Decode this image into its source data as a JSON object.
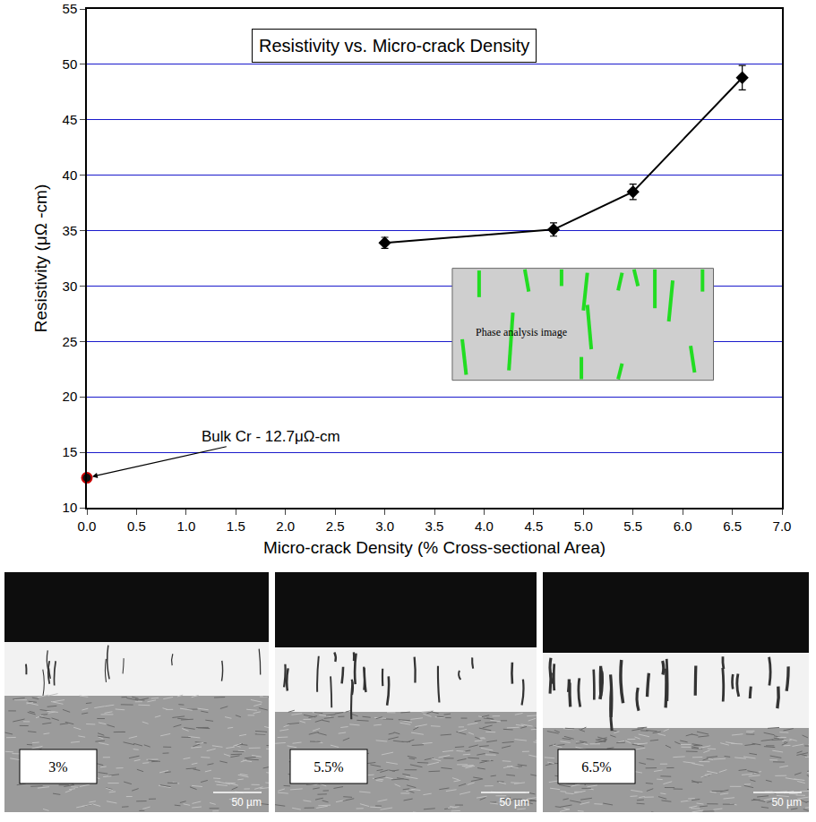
{
  "chart_data": {
    "type": "scatter",
    "title": "Resistivity vs. Micro-crack Density",
    "x_label": "Micro-crack Density (% Cross-sectional Area)",
    "y_label": "Resistivity (μΩ -cm)",
    "x": [
      3.0,
      4.7,
      5.5,
      6.6
    ],
    "values": [
      33.9,
      35.1,
      38.5,
      48.8
    ],
    "error": [
      0.5,
      0.6,
      0.7,
      1.1
    ],
    "color": "#000000",
    "marker": "diamond",
    "line_style": "solid",
    "reference": {
      "x": 0,
      "value": 12.7,
      "label": "Bulk Cr - 12.7μΩ-cm",
      "color": "#cc0000",
      "marker": "circle"
    },
    "xlim": [
      0,
      7
    ],
    "xticks": [
      {
        "value": 0,
        "label": "0.0"
      },
      0.5,
      {
        "value": 1,
        "label": "1.0"
      },
      1.5,
      {
        "value": 2,
        "label": "2.0"
      },
      2.5,
      {
        "value": 3,
        "label": "3.0"
      },
      3.5,
      {
        "value": 4,
        "label": "4.0"
      },
      4.5,
      {
        "value": 5,
        "label": "5.0"
      },
      5.5,
      {
        "value": 6,
        "label": "6.0"
      },
      6.5,
      {
        "value": 7,
        "label": "7.0"
      }
    ],
    "ylim": [
      10,
      55
    ],
    "yticks": [
      10,
      15,
      20,
      25,
      30,
      35,
      40,
      45,
      50,
      55
    ],
    "grid": true,
    "inset": {
      "label": "Phase analysis image"
    }
  },
  "micrographs": {
    "scale_bar": "50 µm",
    "panels": [
      {
        "label": "3%"
      },
      {
        "label": "5.5%"
      },
      {
        "label": "6.5%"
      }
    ]
  }
}
